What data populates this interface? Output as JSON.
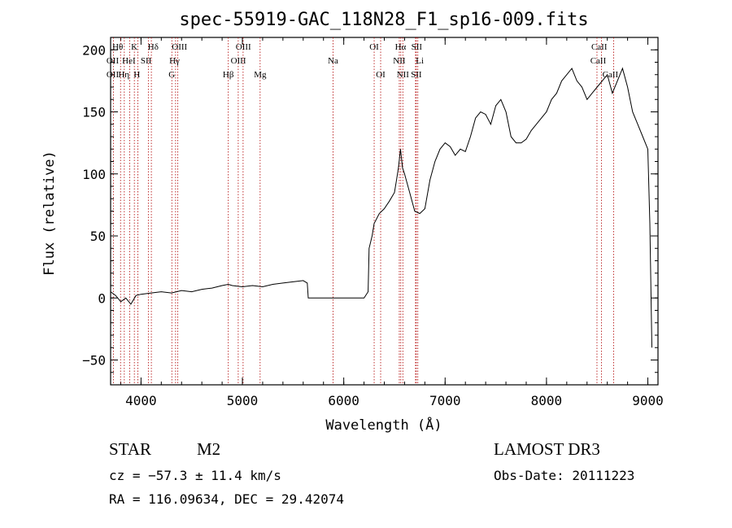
{
  "chart_data": {
    "type": "line",
    "title": "spec-55919-GAC_118N28_F1_sp16-009.fits",
    "xlabel": "Wavelength (Å)",
    "ylabel": "Flux (relative)",
    "xlim": [
      3700,
      9100
    ],
    "ylim": [
      -70,
      210
    ],
    "xticks": [
      4000,
      5000,
      6000,
      7000,
      8000,
      9000
    ],
    "xtick_labels": [
      "4000",
      "5000",
      "6000",
      "7000",
      "8000",
      "9000"
    ],
    "yticks": [
      -50,
      0,
      50,
      100,
      150,
      200
    ],
    "ytick_labels": [
      "−50",
      "0",
      "50",
      "100",
      "150",
      "200"
    ],
    "series": [
      {
        "name": "flux",
        "x": [
          3700,
          3750,
          3800,
          3850,
          3900,
          3950,
          4000,
          4100,
          4200,
          4300,
          4400,
          4500,
          4600,
          4700,
          4800,
          4860,
          4900,
          5000,
          5100,
          5200,
          5300,
          5400,
          5500,
          5600,
          5640,
          5650,
          6200,
          6240,
          6250,
          6280,
          6300,
          6350,
          6400,
          6450,
          6500,
          6520,
          6540,
          6560,
          6580,
          6600,
          6650,
          6700,
          6750,
          6800,
          6850,
          6900,
          6950,
          7000,
          7050,
          7100,
          7150,
          7200,
          7250,
          7300,
          7350,
          7400,
          7450,
          7500,
          7550,
          7600,
          7650,
          7700,
          7750,
          7800,
          7850,
          7900,
          7950,
          8000,
          8050,
          8100,
          8150,
          8200,
          8250,
          8300,
          8350,
          8400,
          8450,
          8500,
          8550,
          8600,
          8650,
          8700,
          8750,
          8800,
          8850,
          8900,
          8950,
          9000,
          9020,
          9040
        ],
        "y": [
          5,
          2,
          -3,
          0,
          -5,
          2,
          3,
          4,
          5,
          4,
          6,
          5,
          7,
          8,
          10,
          11,
          10,
          9,
          10,
          9,
          11,
          12,
          13,
          14,
          12,
          0,
          0,
          5,
          40,
          50,
          60,
          68,
          72,
          78,
          85,
          95,
          105,
          120,
          105,
          100,
          85,
          70,
          68,
          72,
          95,
          110,
          120,
          125,
          122,
          115,
          120,
          118,
          130,
          145,
          150,
          148,
          140,
          155,
          160,
          150,
          130,
          125,
          125,
          128,
          135,
          140,
          145,
          150,
          160,
          165,
          175,
          180,
          185,
          175,
          170,
          160,
          165,
          170,
          175,
          180,
          165,
          175,
          185,
          170,
          150,
          140,
          130,
          120,
          60,
          -40
        ]
      }
    ],
    "lines": [
      {
        "name": "OII",
        "x": 3727
      },
      {
        "name": "Hθ",
        "x": 3798
      },
      {
        "name": "Hη",
        "x": 3835
      },
      {
        "name": "HeI",
        "x": 3889
      },
      {
        "name": "K",
        "x": 3934
      },
      {
        "name": "H",
        "x": 3969
      },
      {
        "name": "SII",
        "x": 4072
      },
      {
        "name": "Hδ",
        "x": 4102
      },
      {
        "name": "G",
        "x": 4304
      },
      {
        "name": "Hγ",
        "x": 4341
      },
      {
        "name": "OIII",
        "x": 4363
      },
      {
        "name": "Hβ",
        "x": 4861
      },
      {
        "name": "OIII",
        "x": 4959
      },
      {
        "name": "OIII",
        "x": 5007
      },
      {
        "name": "Mg",
        "x": 5175
      },
      {
        "name": "Na",
        "x": 5894
      },
      {
        "name": "OI",
        "x": 6300
      },
      {
        "name": "OI",
        "x": 6364
      },
      {
        "name": "NII",
        "x": 6548
      },
      {
        "name": "Hα",
        "x": 6563
      },
      {
        "name": "NII",
        "x": 6583
      },
      {
        "name": "Li",
        "x": 6708
      },
      {
        "name": "SII",
        "x": 6716
      },
      {
        "name": "SII",
        "x": 6731
      },
      {
        "name": "CaII",
        "x": 8498
      },
      {
        "name": "CaII",
        "x": 8542
      },
      {
        "name": "CaII",
        "x": 8662
      }
    ],
    "line_labels": [
      {
        "text": "Hθ",
        "row": 1,
        "x": 3770
      },
      {
        "text": "K",
        "x": 3934,
        "row": 1
      },
      {
        "text": "Hδ",
        "x": 4120,
        "row": 1
      },
      {
        "text": "OIII",
        "x": 4380,
        "row": 1
      },
      {
        "text": "OIII",
        "x": 5010,
        "row": 1
      },
      {
        "text": "OI",
        "x": 6300,
        "row": 1
      },
      {
        "text": "Hα",
        "x": 6560,
        "row": 1
      },
      {
        "text": "SII",
        "x": 6720,
        "row": 1
      },
      {
        "text": "CaII",
        "x": 8520,
        "row": 1
      },
      {
        "text": "OII",
        "x": 3720,
        "row": 2
      },
      {
        "text": "HeI",
        "x": 3880,
        "row": 2
      },
      {
        "text": "SII",
        "x": 4050,
        "row": 2
      },
      {
        "text": "Hγ",
        "x": 4330,
        "row": 2
      },
      {
        "text": "OIII",
        "x": 4960,
        "row": 2
      },
      {
        "text": "Na",
        "x": 5894,
        "row": 2
      },
      {
        "text": "NII",
        "x": 6548,
        "row": 2
      },
      {
        "text": "Li",
        "x": 6750,
        "row": 2
      },
      {
        "text": "CaII",
        "x": 8510,
        "row": 2
      },
      {
        "text": "OII",
        "x": 3720,
        "row": 3
      },
      {
        "text": "Hη",
        "x": 3830,
        "row": 3
      },
      {
        "text": "H",
        "x": 3960,
        "row": 3
      },
      {
        "text": "G",
        "x": 4304,
        "row": 3
      },
      {
        "text": "Hβ",
        "x": 4861,
        "row": 3
      },
      {
        "text": "Mg",
        "x": 5175,
        "row": 3
      },
      {
        "text": "OI",
        "x": 6364,
        "row": 3
      },
      {
        "text": "NII",
        "x": 6583,
        "row": 3
      },
      {
        "text": "SII",
        "x": 6716,
        "row": 3
      },
      {
        "text": "CaII",
        "x": 8630,
        "row": 3
      }
    ],
    "line_color": "#b00000"
  },
  "info": {
    "object_class": "STAR",
    "subclass": "M2",
    "survey": "LAMOST DR3",
    "cz": "cz = −57.3 ± 11.4 km/s",
    "obs_date": "Obs-Date: 20111223",
    "coords": "RA = 116.09634, DEC =  29.42074"
  }
}
